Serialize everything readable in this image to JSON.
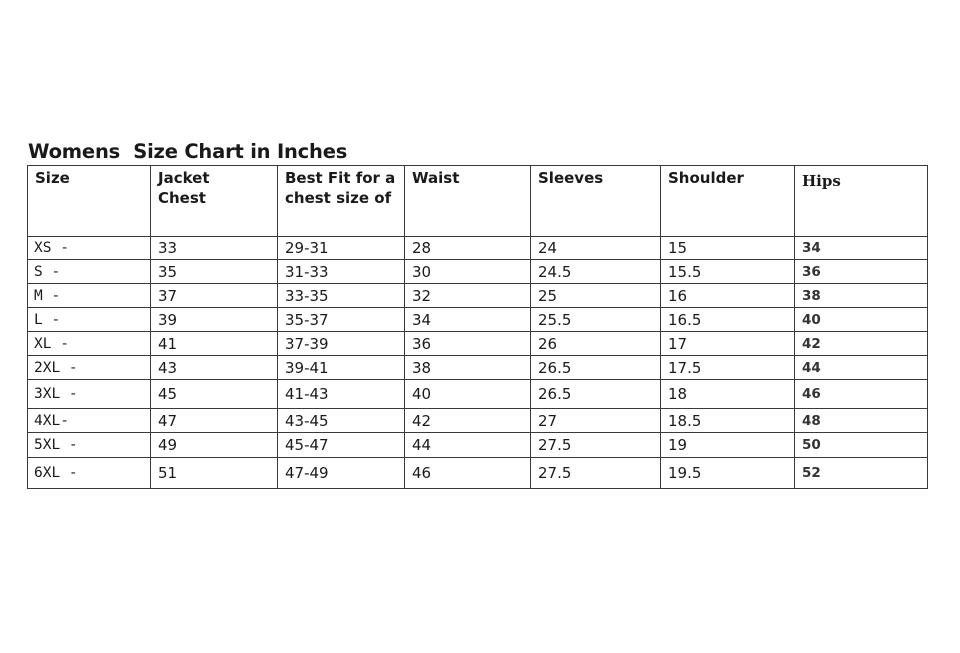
{
  "title": "Womens  Size Chart in Inches",
  "table": {
    "headers": [
      "Size",
      "Jacket Chest",
      "Best Fit for a chest size of",
      "Waist",
      "Sleeves",
      "Shoulder",
      "Hips"
    ],
    "rows": [
      [
        "XS -",
        "33",
        "29-31",
        "28",
        "24",
        "15",
        "34"
      ],
      [
        "S -",
        "35",
        "31-33",
        "30",
        "24.5",
        "15.5",
        "36"
      ],
      [
        "M -",
        "37",
        "33-35",
        "32",
        "25",
        "16",
        "38"
      ],
      [
        "L -",
        "39",
        "35-37",
        "34",
        "25.5",
        "16.5",
        "40"
      ],
      [
        "XL -",
        "41",
        "37-39",
        "36",
        "26",
        "17",
        "42"
      ],
      [
        "2XL -",
        "43",
        "39-41",
        "38",
        "26.5",
        "17.5",
        "44"
      ],
      [
        "3XL -",
        "45",
        "41-43",
        "40",
        "26.5",
        "18",
        "46"
      ],
      [
        "4XL-",
        "47",
        "43-45",
        "42",
        "27",
        "18.5",
        "48"
      ],
      [
        "5XL -",
        "49",
        "45-47",
        "44",
        "27.5",
        "19",
        "50"
      ],
      [
        "6XL -",
        "51",
        "47-49",
        "46",
        "27.5",
        "19.5",
        "52"
      ]
    ]
  }
}
